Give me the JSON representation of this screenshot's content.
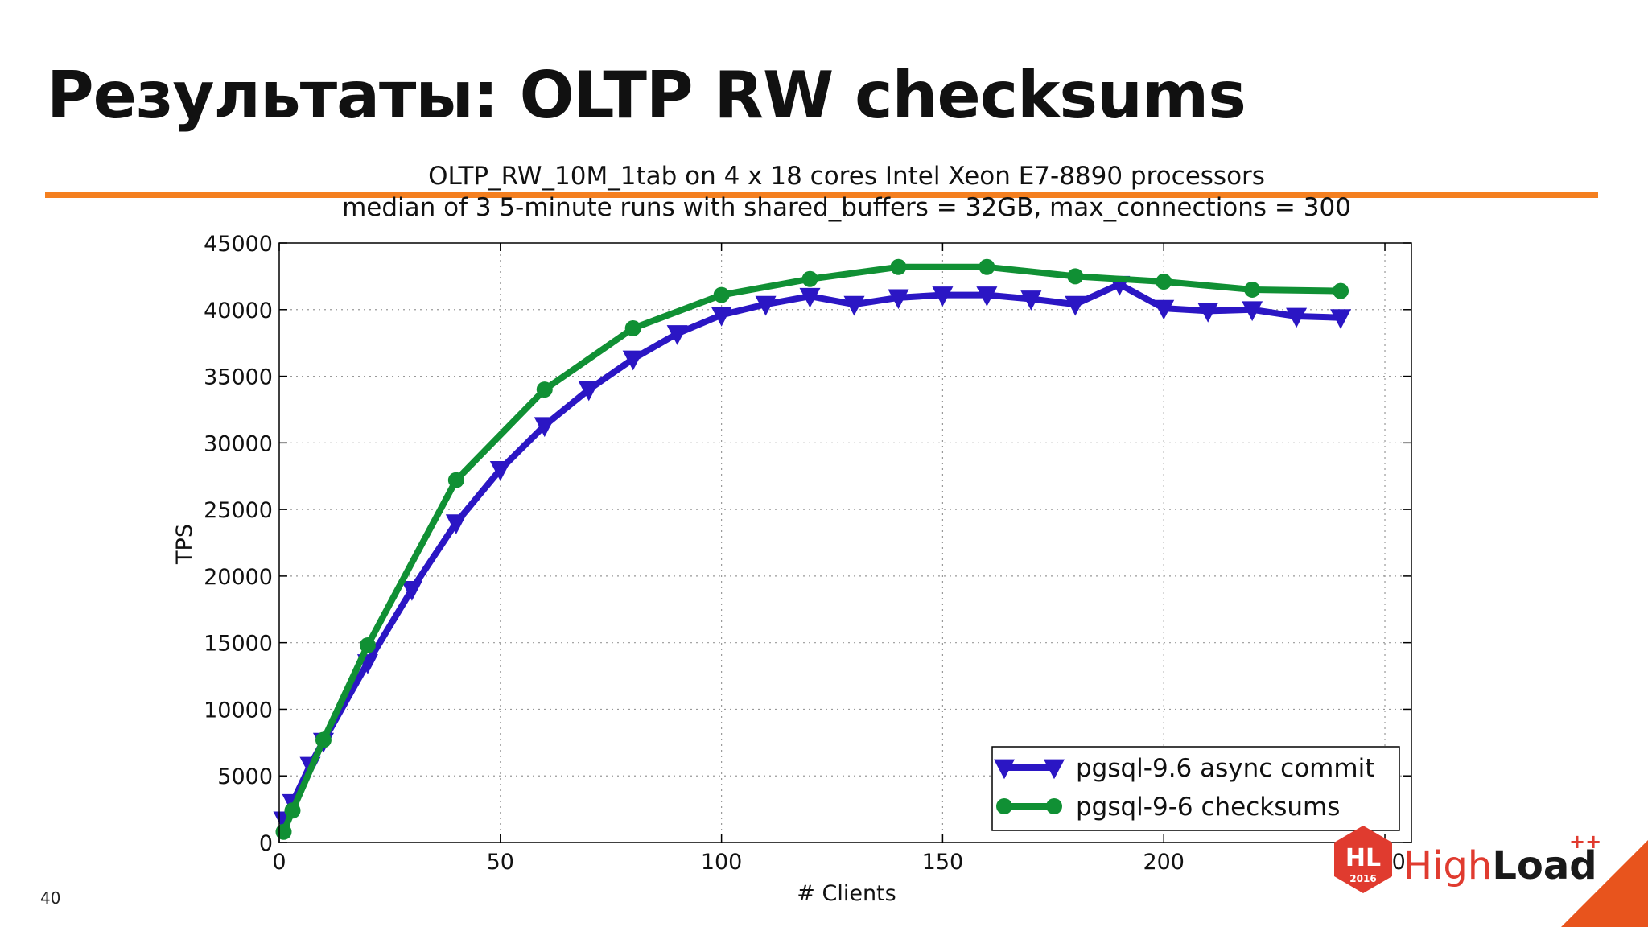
{
  "slide": {
    "title": "Результаты: OLTP RW checksums",
    "page_number": "40",
    "accent_color": "#f47f1f",
    "logo": {
      "text_a": "High",
      "text_b": "Load",
      "superscript": "++",
      "badge": "HL",
      "badge_year": "2016",
      "color": "#e03b2f"
    }
  },
  "chart_data": {
    "type": "line",
    "title": "OLTP_RW_10M_1tab on 4 x 18 cores Intel Xeon E7-8890 processors",
    "subtitle": "median of 3 5-minute runs with shared_buffers = 32GB, max_connections = 300",
    "xlabel": "# Clients",
    "ylabel": "TPS",
    "xlim": [
      0,
      256
    ],
    "ylim": [
      0,
      45000
    ],
    "xticks": [
      0,
      50,
      100,
      150,
      200,
      250
    ],
    "yticks": [
      0,
      5000,
      10000,
      15000,
      20000,
      25000,
      30000,
      35000,
      40000,
      45000
    ],
    "grid": true,
    "legend_position": "bottom-right",
    "series": [
      {
        "name": "pgsql-9.6 async commit",
        "color": "#2b16c4",
        "marker": "triangle-down",
        "x": [
          1,
          3,
          7,
          10,
          20,
          30,
          40,
          50,
          60,
          70,
          80,
          90,
          100,
          110,
          120,
          130,
          140,
          150,
          160,
          170,
          180,
          190,
          200,
          210,
          220,
          230,
          240
        ],
        "y": [
          1700,
          3000,
          5800,
          7600,
          13500,
          19000,
          24000,
          28000,
          31300,
          34000,
          36300,
          38200,
          39600,
          40400,
          41000,
          40400,
          40900,
          41100,
          41100,
          40800,
          40400,
          41900,
          40100,
          39900,
          40000,
          39500,
          39400
        ]
      },
      {
        "name": "pgsql-9-6 checksums",
        "color": "#109034",
        "marker": "circle",
        "x": [
          1,
          3,
          10,
          20,
          40,
          60,
          80,
          100,
          120,
          140,
          160,
          180,
          200,
          220,
          240
        ],
        "y": [
          800,
          2400,
          7700,
          14800,
          27200,
          34000,
          38600,
          41100,
          42300,
          43200,
          43200,
          42500,
          42100,
          41500,
          41400
        ]
      }
    ]
  }
}
